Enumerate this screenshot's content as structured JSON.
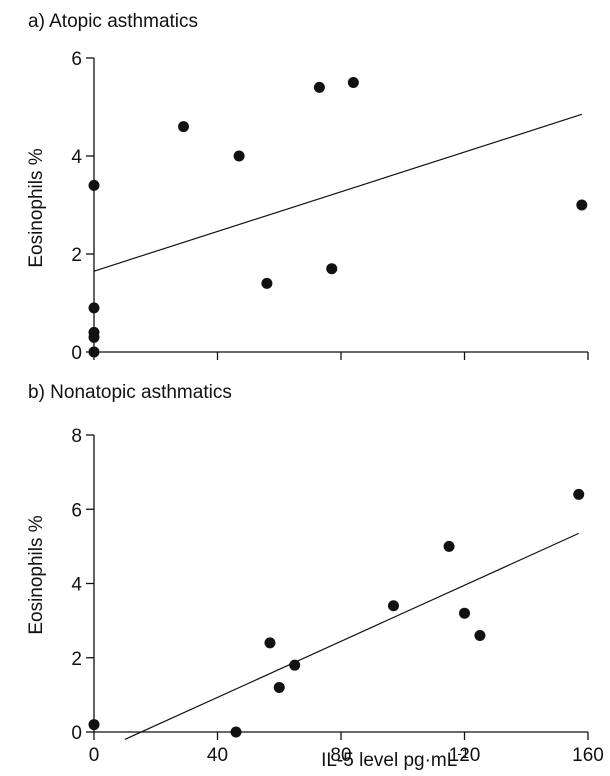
{
  "chart_data": [
    {
      "type": "scatter",
      "title": "a)  Atopic asthmatics",
      "ylabel": "Eosinophils  %",
      "xlabel": "",
      "xlim": [
        0,
        160
      ],
      "ylim": [
        0,
        6
      ],
      "yticks": [
        "0",
        "2",
        "4",
        "6"
      ],
      "xticks": [
        0,
        40,
        80,
        120,
        160
      ],
      "x_tick_labels_shown": false,
      "grid": false,
      "points": [
        {
          "x": 0,
          "y": 3.4
        },
        {
          "x": 0,
          "y": 0.9
        },
        {
          "x": 0,
          "y": 0.4
        },
        {
          "x": 0,
          "y": 0.3
        },
        {
          "x": 0,
          "y": 0.0
        },
        {
          "x": 29,
          "y": 4.6
        },
        {
          "x": 47,
          "y": 4.0
        },
        {
          "x": 56,
          "y": 1.4
        },
        {
          "x": 73,
          "y": 5.4
        },
        {
          "x": 77,
          "y": 1.7
        },
        {
          "x": 84,
          "y": 5.5
        },
        {
          "x": 158,
          "y": 3.0
        }
      ],
      "fit_line": {
        "x": [
          0,
          158
        ],
        "y": [
          1.65,
          4.85
        ]
      }
    },
    {
      "type": "scatter",
      "title": "b)  Nonatopic asthmatics",
      "ylabel": "Eosinophils  %",
      "xlabel": "IL-5 level  pg·mL",
      "xlabel_sup": "-1",
      "xlim": [
        0,
        160
      ],
      "ylim": [
        0,
        8
      ],
      "yticks": [
        "0",
        "2",
        "4",
        "6",
        "8"
      ],
      "xticks": [
        "0",
        "40",
        "80",
        "120",
        "160"
      ],
      "grid": false,
      "points": [
        {
          "x": 0,
          "y": 0.2
        },
        {
          "x": 46,
          "y": 0.0
        },
        {
          "x": 57,
          "y": 2.4
        },
        {
          "x": 60,
          "y": 1.2
        },
        {
          "x": 65,
          "y": 1.8
        },
        {
          "x": 97,
          "y": 3.4
        },
        {
          "x": 115,
          "y": 5.0
        },
        {
          "x": 120,
          "y": 3.2
        },
        {
          "x": 125,
          "y": 2.6
        },
        {
          "x": 157,
          "y": 6.4
        }
      ],
      "fit_line": {
        "x": [
          10,
          157
        ],
        "y": [
          -0.2,
          5.35
        ]
      }
    }
  ]
}
